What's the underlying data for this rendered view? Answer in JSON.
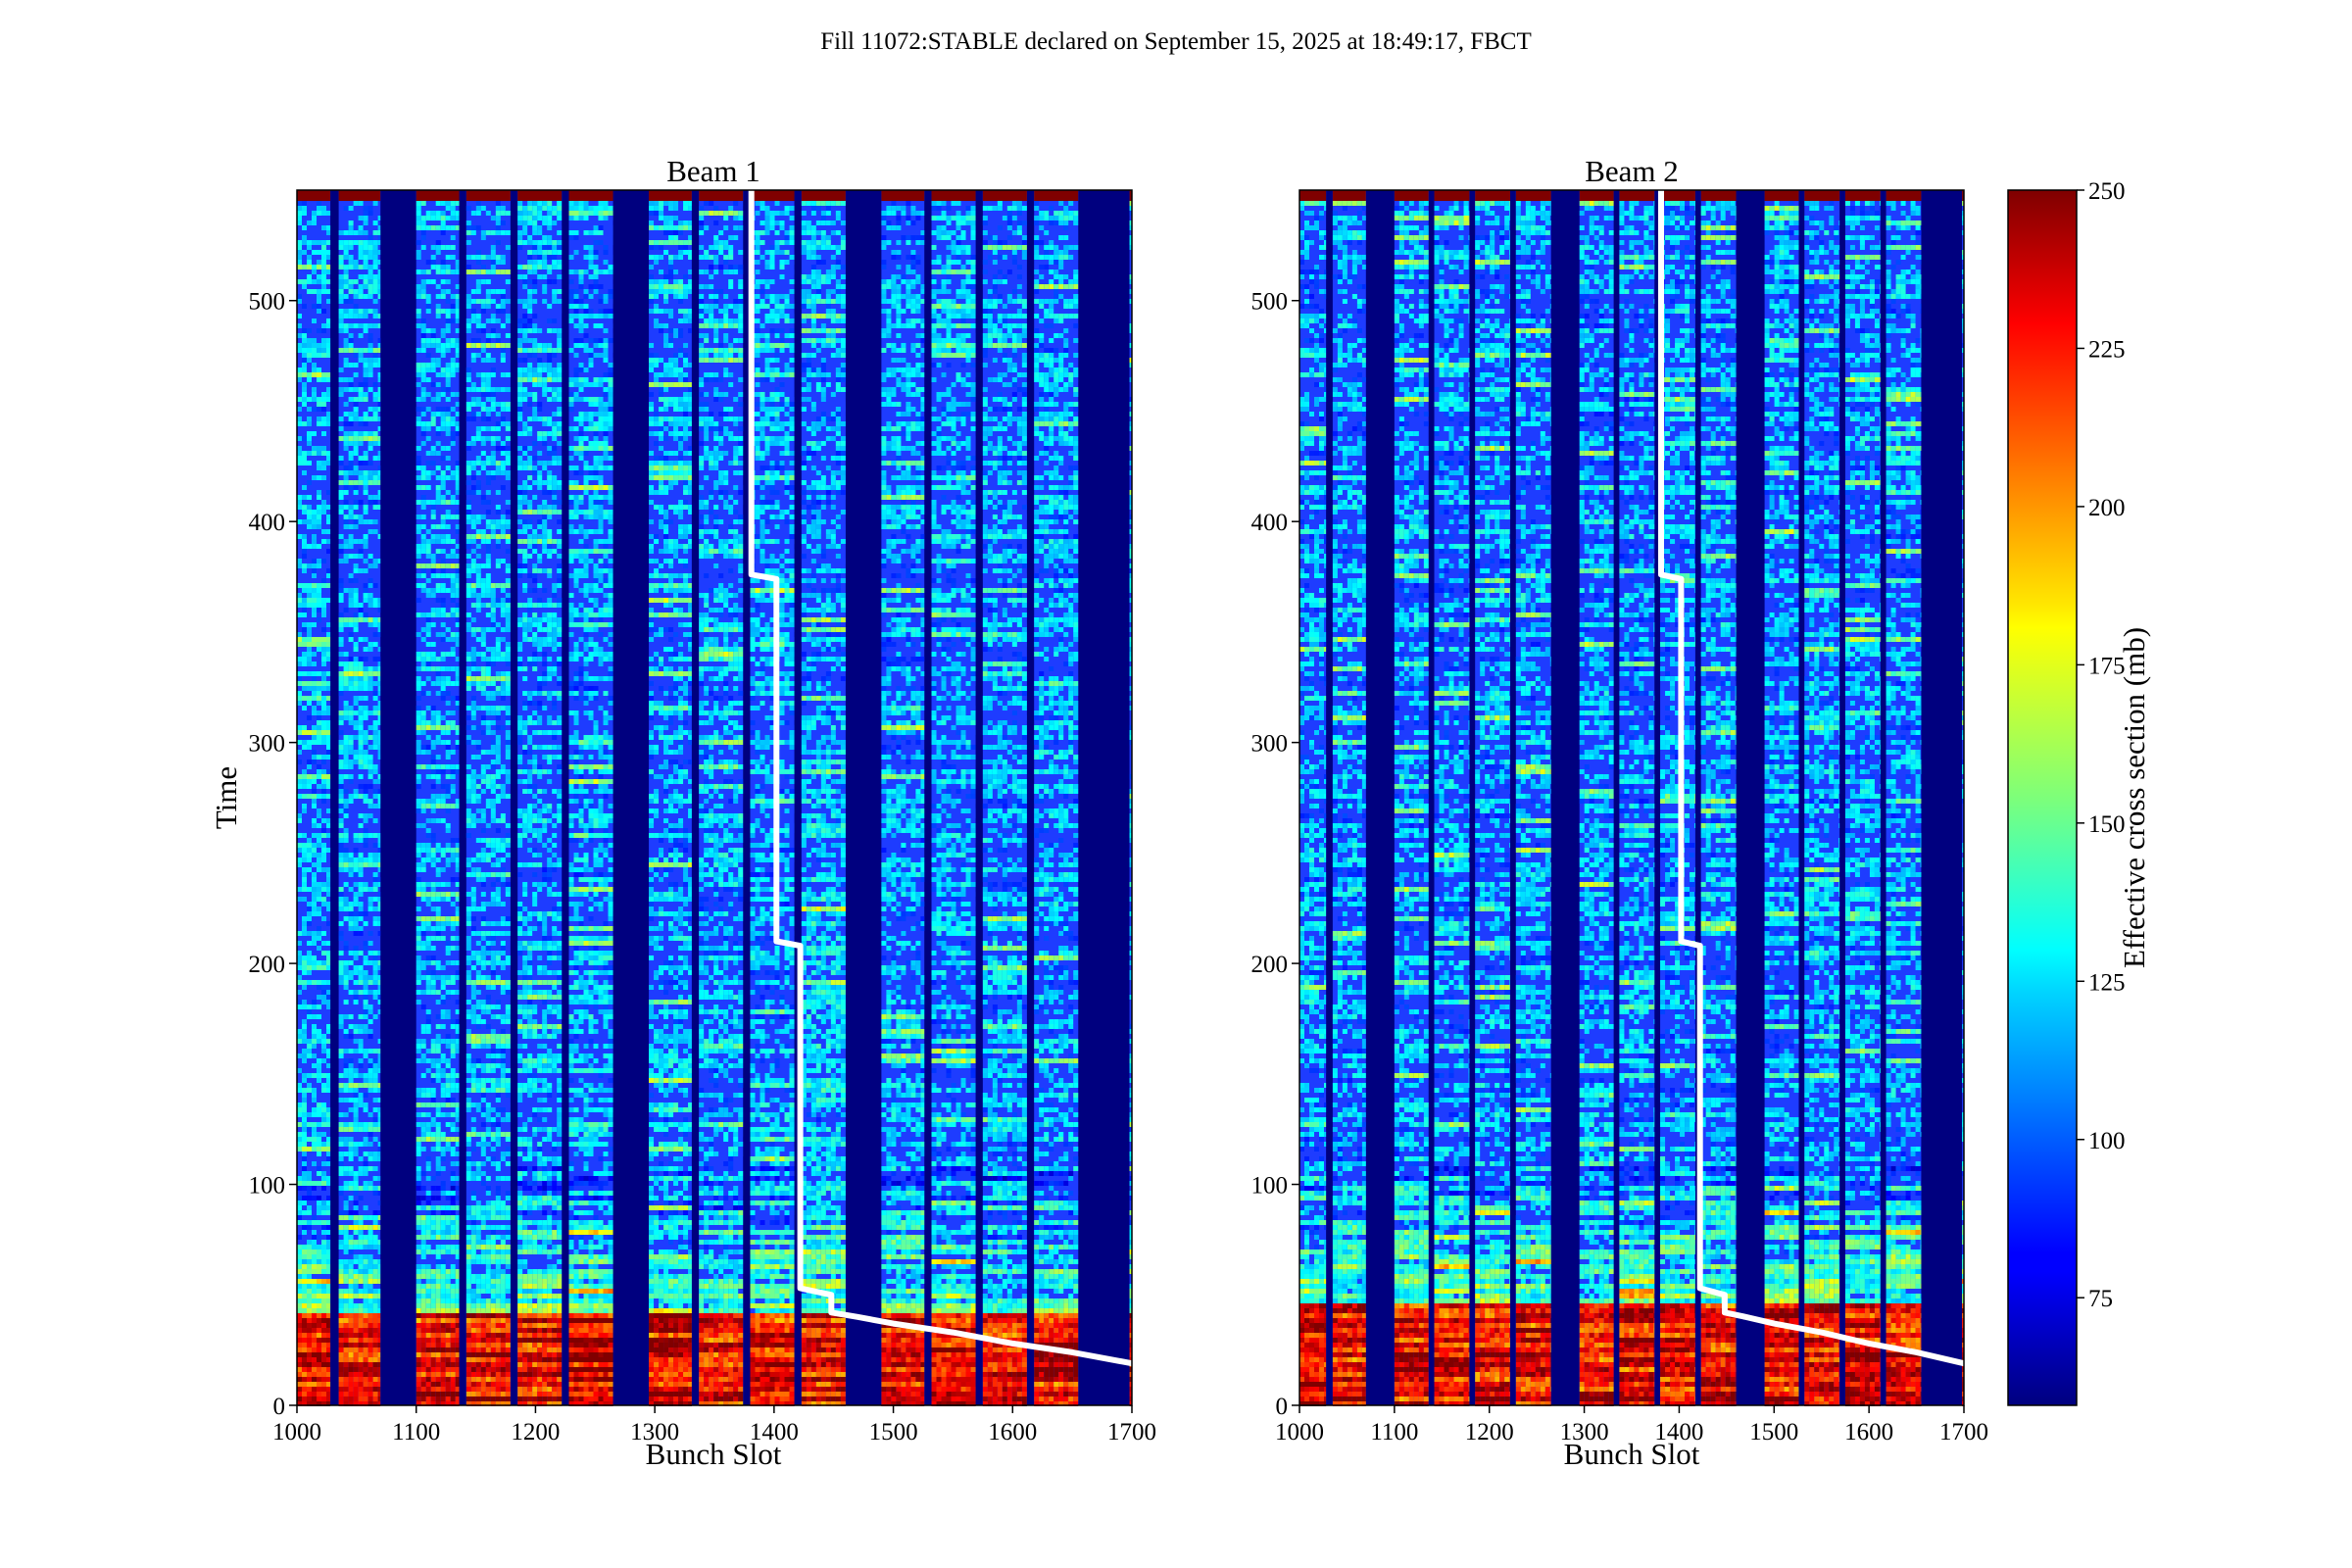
{
  "suptitle": "Fill 11072:STABLE declared on September 15, 2025 at 18:49:17, FBCT",
  "chart_data": [
    {
      "type": "heatmap",
      "title": "Beam 1",
      "xlabel": "Bunch Slot",
      "ylabel": "Time",
      "xlim": [
        1000,
        1700
      ],
      "ylim": [
        0,
        550
      ],
      "xticks": [
        1000,
        1100,
        1200,
        1300,
        1400,
        1500,
        1600,
        1700
      ],
      "yticks": [
        0,
        100,
        200,
        300,
        400,
        500
      ],
      "filled_slot_ranges": [
        [
          1000,
          1028
        ],
        [
          1035,
          1070
        ],
        [
          1100,
          1136
        ],
        [
          1142,
          1179
        ],
        [
          1185,
          1222
        ],
        [
          1228,
          1265
        ],
        [
          1295,
          1331
        ],
        [
          1337,
          1374
        ],
        [
          1380,
          1417
        ],
        [
          1423,
          1460
        ],
        [
          1490,
          1526
        ],
        [
          1532,
          1569
        ],
        [
          1575,
          1612
        ],
        [
          1618,
          1655
        ],
        [
          1698,
          1700
        ]
      ],
      "early_hot_ranges": [
        [
          1450,
          1460
        ]
      ],
      "hot_until_time": 42,
      "overlay_line": {
        "color": "#ffffff",
        "points": [
          [
            1381,
            550
          ],
          [
            1381,
            376
          ],
          [
            1402,
            374
          ],
          [
            1402,
            210
          ],
          [
            1422,
            208
          ],
          [
            1422,
            53
          ],
          [
            1448,
            50
          ],
          [
            1448,
            42
          ],
          [
            1470,
            40
          ],
          [
            1500,
            37
          ],
          [
            1550,
            33
          ],
          [
            1600,
            28
          ],
          [
            1650,
            24
          ],
          [
            1700,
            19
          ]
        ]
      }
    },
    {
      "type": "heatmap",
      "title": "Beam 2",
      "xlabel": "Bunch Slot",
      "ylabel": "",
      "xlim": [
        1000,
        1700
      ],
      "ylim": [
        0,
        550
      ],
      "xticks": [
        1000,
        1100,
        1200,
        1300,
        1400,
        1500,
        1600,
        1700
      ],
      "yticks": [
        0,
        100,
        200,
        300,
        400,
        500
      ],
      "filled_slot_ranges": [
        [
          1000,
          1028
        ],
        [
          1035,
          1070
        ],
        [
          1100,
          1136
        ],
        [
          1142,
          1179
        ],
        [
          1185,
          1222
        ],
        [
          1228,
          1265
        ],
        [
          1295,
          1331
        ],
        [
          1337,
          1374
        ],
        [
          1380,
          1417
        ],
        [
          1423,
          1460
        ],
        [
          1490,
          1526
        ],
        [
          1532,
          1569
        ],
        [
          1575,
          1612
        ],
        [
          1618,
          1655
        ],
        [
          1698,
          1700
        ]
      ],
      "early_hot_ranges": [],
      "hot_until_time": 48,
      "overlay_line": {
        "color": "#ffffff",
        "points": [
          [
            1381,
            550
          ],
          [
            1381,
            376
          ],
          [
            1402,
            374
          ],
          [
            1402,
            210
          ],
          [
            1422,
            208
          ],
          [
            1422,
            53
          ],
          [
            1448,
            50
          ],
          [
            1448,
            42
          ],
          [
            1470,
            40
          ],
          [
            1500,
            37
          ],
          [
            1550,
            33
          ],
          [
            1600,
            28
          ],
          [
            1650,
            24
          ],
          [
            1700,
            19
          ]
        ]
      }
    }
  ],
  "colorbar": {
    "label": "Effective cross section (mb)",
    "colormap": "jet",
    "range": [
      58,
      250
    ],
    "ticks": [
      75,
      100,
      125,
      150,
      175,
      200,
      225,
      250
    ]
  }
}
